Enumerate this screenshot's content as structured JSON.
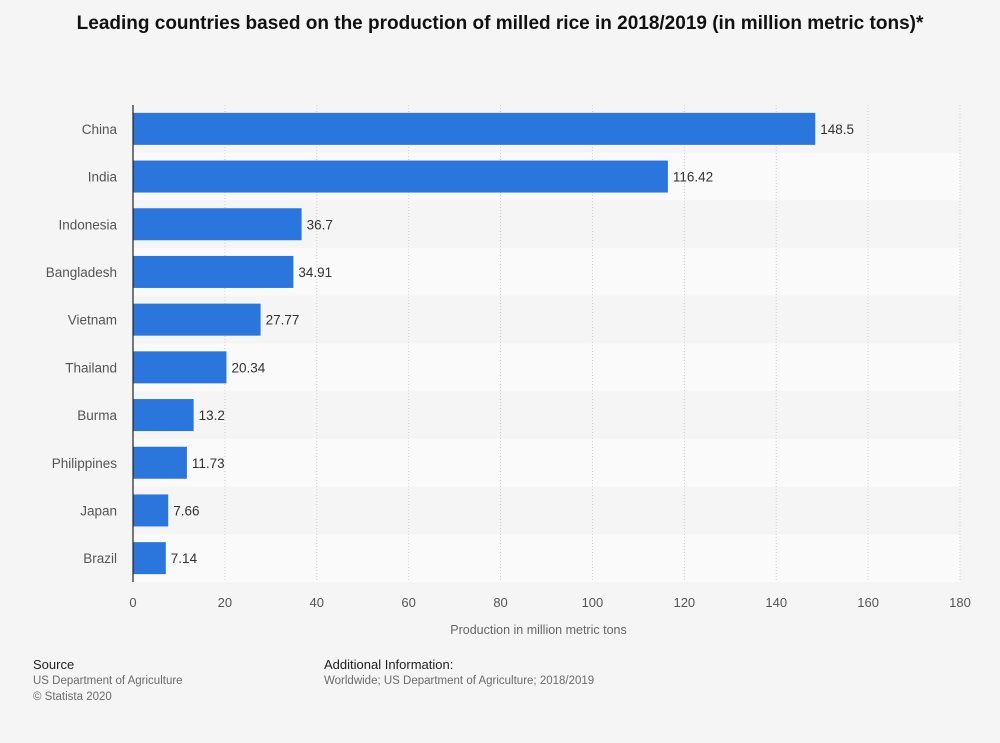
{
  "title": "Leading countries based on the production of milled rice in 2018/2019 (in million metric tons)*",
  "chart_data": {
    "type": "bar",
    "orientation": "horizontal",
    "categories": [
      "China",
      "India",
      "Indonesia",
      "Bangladesh",
      "Vietnam",
      "Thailand",
      "Burma",
      "Philippines",
      "Japan",
      "Brazil"
    ],
    "values": [
      148.5,
      116.42,
      36.7,
      34.91,
      27.77,
      20.34,
      13.2,
      11.73,
      7.66,
      7.14
    ],
    "value_labels": [
      "148.5",
      "116.42",
      "36.7",
      "34.91",
      "27.77",
      "20.34",
      "13.2",
      "11.73",
      "7.66",
      "7.14"
    ],
    "xlabel": "Production in million metric tons",
    "xlim": [
      0,
      180
    ],
    "xticks": [
      "0",
      "20",
      "40",
      "60",
      "80",
      "100",
      "120",
      "140",
      "160",
      "180"
    ],
    "grid": true,
    "bar_color": "#2a76dd"
  },
  "footer": {
    "source_heading": "Source",
    "source_lines": [
      "US Department of Agriculture",
      "© Statista 2020"
    ],
    "info_heading": "Additional Information:",
    "info_text": "Worldwide; US Department of Agriculture; 2018/2019"
  }
}
